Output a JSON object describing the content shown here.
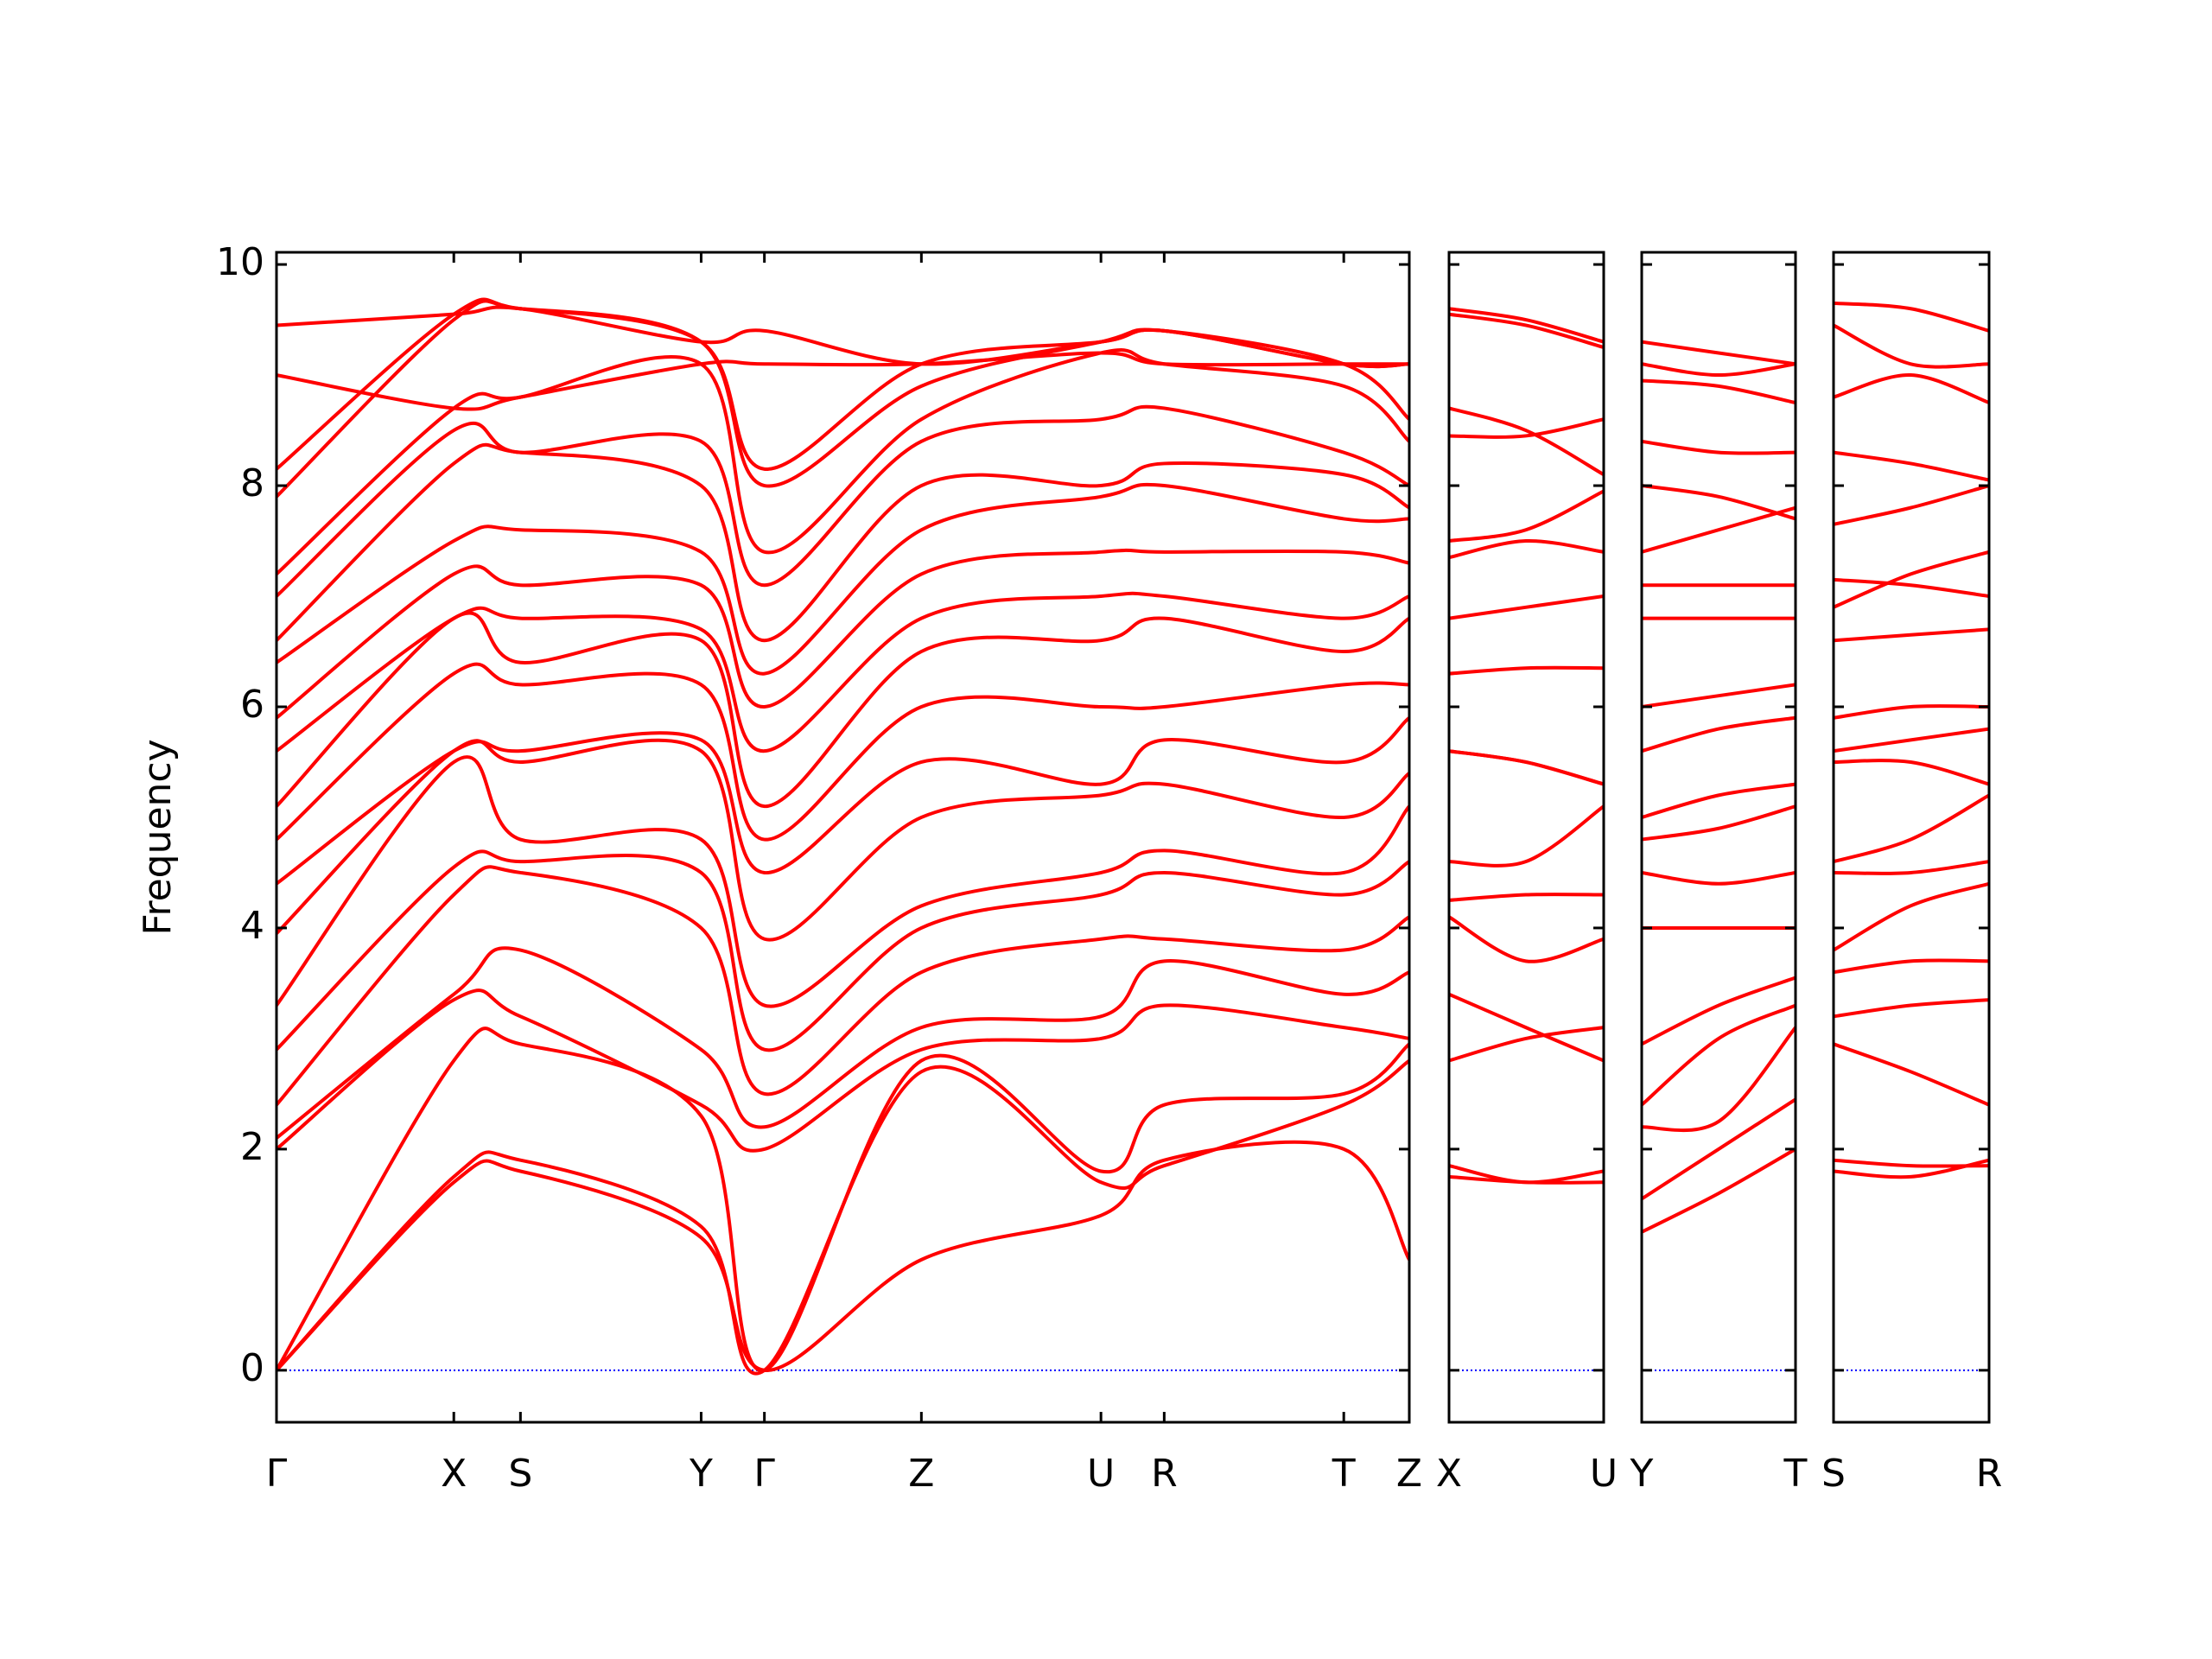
{
  "chart_data": [
    {
      "type": "line",
      "ylabel": "Frequency",
      "color": "#ff0000",
      "ytick_labels": true,
      "reference_line": {
        "value": 0,
        "color": "#0000ff"
      },
      "xlim": [
        0,
        1.003
      ],
      "ylim": [
        -0.47,
        10.11
      ],
      "yticks": [
        0,
        2,
        4,
        6,
        8,
        10
      ],
      "xticks": [
        {
          "value": 0,
          "label": "Γ"
        },
        {
          "value": 0.157,
          "label": "X"
        },
        {
          "value": 0.216,
          "label": "S"
        },
        {
          "value": 0.376,
          "label": "Y"
        },
        {
          "value": 0.432,
          "label": "Γ"
        },
        {
          "value": 0.571,
          "label": "Z"
        },
        {
          "value": 0.73,
          "label": "U"
        },
        {
          "value": 0.786,
          "label": "R"
        },
        {
          "value": 0.945,
          "label": "T"
        },
        {
          "value": 1.003,
          "label": "Z"
        }
      ],
      "x": [
        0,
        0.157,
        0.216,
        0.376,
        0.432,
        0.571,
        0.73,
        0.786,
        0.945,
        1.003
      ],
      "series": [
        {
          "values": [
            0,
            1.7,
            1.8,
            1.2,
            0,
            1.0,
            1.4,
            1.9,
            2.0,
            1.0
          ]
        },
        {
          "values": [
            0,
            1.75,
            1.9,
            1.3,
            0,
            2.7,
            1.7,
            1.85,
            2.4,
            2.8
          ]
        },
        {
          "values": [
            0,
            2.8,
            2.95,
            2.3,
            0,
            2.8,
            1.8,
            2.4,
            2.5,
            2.95
          ]
        },
        {
          "values": [
            2.0,
            3.35,
            3.2,
            2.4,
            2.0,
            2.9,
            3.0,
            3.3,
            3.1,
            3.0
          ]
        },
        {
          "values": [
            2.1,
            3.4,
            3.8,
            2.9,
            2.2,
            3.1,
            3.2,
            3.7,
            3.4,
            3.6
          ]
        },
        {
          "values": [
            2.4,
            4.3,
            4.5,
            4.0,
            2.5,
            3.6,
            3.9,
            3.9,
            3.8,
            4.1
          ]
        },
        {
          "values": [
            2.9,
            4.55,
            4.6,
            4.5,
            2.9,
            4.0,
            4.3,
            4.5,
            4.3,
            4.6
          ]
        },
        {
          "values": [
            3.3,
            5.5,
            4.8,
            4.8,
            3.3,
            4.2,
            4.5,
            4.7,
            4.5,
            5.1
          ]
        },
        {
          "values": [
            3.95,
            5.6,
            5.5,
            5.6,
            3.9,
            5.0,
            5.2,
            5.3,
            5.0,
            5.4
          ]
        },
        {
          "values": [
            4.4,
            5.6,
            5.6,
            5.7,
            4.5,
            5.5,
            5.3,
            5.7,
            5.5,
            5.9
          ]
        },
        {
          "values": [
            4.8,
            6.3,
            6.2,
            6.2,
            4.8,
            6.0,
            6.0,
            6.0,
            6.2,
            6.2
          ]
        },
        {
          "values": [
            5.1,
            6.8,
            6.4,
            6.6,
            5.1,
            6.5,
            6.6,
            6.8,
            6.5,
            6.8
          ]
        },
        {
          "values": [
            5.6,
            6.8,
            6.8,
            6.7,
            5.6,
            6.8,
            7.0,
            7.0,
            6.8,
            7.0
          ]
        },
        {
          "values": [
            5.9,
            7.2,
            7.1,
            7.1,
            6.0,
            7.2,
            7.4,
            7.4,
            7.4,
            7.3
          ]
        },
        {
          "values": [
            6.4,
            7.5,
            7.6,
            7.4,
            6.3,
            7.6,
            7.9,
            8.0,
            7.7,
            7.7
          ]
        },
        {
          "values": [
            6.6,
            8.2,
            8.3,
            8.0,
            6.6,
            8.0,
            8.0,
            8.2,
            8.1,
            7.8
          ]
        },
        {
          "values": [
            7.0,
            8.5,
            8.3,
            8.4,
            7.1,
            8.4,
            8.6,
            8.7,
            8.3,
            8.0
          ]
        },
        {
          "values": [
            7.2,
            8.7,
            8.8,
            9.1,
            7.4,
            8.6,
            9.2,
            9.1,
            8.9,
            8.4
          ]
        },
        {
          "values": [
            7.9,
            9.5,
            9.6,
            9.3,
            8.0,
            8.9,
            9.3,
            9.4,
            9.1,
            8.6
          ]
        },
        {
          "values": [
            8.15,
            9.55,
            9.6,
            9.3,
            8.15,
            9.1,
            9.3,
            9.4,
            9.1,
            9.1
          ]
        },
        {
          "values": [
            9.0,
            8.7,
            8.8,
            9.1,
            9.1,
            9.1,
            9.2,
            9.1,
            9.1,
            9.1
          ]
        },
        {
          "values": [
            9.45,
            9.55,
            9.6,
            9.3,
            9.4,
            9.1,
            9.3,
            9.4,
            9.1,
            9.1
          ]
        }
      ]
    },
    {
      "type": "line",
      "color": "#ff0000",
      "ytick_labels": false,
      "reference_line": {
        "value": 0,
        "color": "#0000ff"
      },
      "xlim": [
        0,
        0.137
      ],
      "ylim": [
        -0.47,
        10.11
      ],
      "yticks": [
        0,
        2,
        4,
        6,
        8,
        10
      ],
      "xticks": [
        {
          "value": 0,
          "label": "X"
        },
        {
          "value": 0.137,
          "label": "U"
        }
      ],
      "x": [
        0,
        0.068,
        0.137
      ],
      "series": [
        {
          "values": [
            1.85,
            1.7,
            1.8
          ]
        },
        {
          "values": [
            1.75,
            1.7,
            1.7
          ]
        },
        {
          "values": [
            2.8,
            3.0,
            3.1
          ]
        },
        {
          "values": [
            3.4,
            3.1,
            2.8
          ]
        },
        {
          "values": [
            4.1,
            3.7,
            3.9
          ]
        },
        {
          "values": [
            4.25,
            4.3,
            4.3
          ]
        },
        {
          "values": [
            4.6,
            4.6,
            5.1
          ]
        },
        {
          "values": [
            5.6,
            5.5,
            5.3
          ]
        },
        {
          "values": [
            5.6,
            5.5,
            5.3
          ]
        },
        {
          "values": [
            6.3,
            6.35,
            6.35
          ]
        },
        {
          "values": [
            6.8,
            6.9,
            7.0
          ]
        },
        {
          "values": [
            7.35,
            7.5,
            7.4
          ]
        },
        {
          "values": [
            7.5,
            7.6,
            7.95
          ]
        },
        {
          "values": [
            8.45,
            8.45,
            8.6
          ]
        },
        {
          "values": [
            8.7,
            8.5,
            8.1
          ]
        },
        {
          "values": [
            9.55,
            9.45,
            9.25
          ]
        },
        {
          "values": [
            9.6,
            9.5,
            9.3
          ]
        }
      ]
    },
    {
      "type": "line",
      "color": "#ff0000",
      "ytick_labels": false,
      "reference_line": {
        "value": 0,
        "color": "#0000ff"
      },
      "xlim": [
        0,
        0.136
      ],
      "ylim": [
        -0.47,
        10.11
      ],
      "yticks": [
        0,
        2,
        4,
        6,
        8,
        10
      ],
      "xticks": [
        {
          "value": 0,
          "label": "Y"
        },
        {
          "value": 0.136,
          "label": "T"
        }
      ],
      "x": [
        0,
        0.068,
        0.136
      ],
      "series": [
        {
          "values": [
            1.25,
            1.6,
            2.0
          ]
        },
        {
          "values": [
            1.55,
            2.0,
            2.45
          ]
        },
        {
          "values": [
            2.2,
            2.25,
            3.1
          ]
        },
        {
          "values": [
            2.4,
            3.0,
            3.3
          ]
        },
        {
          "values": [
            2.95,
            3.3,
            3.55
          ]
        },
        {
          "values": [
            4.0,
            4.0,
            4.0
          ]
        },
        {
          "values": [
            4.5,
            4.4,
            4.5
          ]
        },
        {
          "values": [
            4.8,
            4.9,
            5.1
          ]
        },
        {
          "values": [
            5.0,
            5.2,
            5.3
          ]
        },
        {
          "values": [
            5.6,
            5.8,
            5.9
          ]
        },
        {
          "values": [
            6.0,
            6.1,
            6.2
          ]
        },
        {
          "values": [
            6.8,
            6.8,
            6.8
          ]
        },
        {
          "values": [
            7.1,
            7.1,
            7.1
          ]
        },
        {
          "values": [
            7.4,
            7.6,
            7.8
          ]
        },
        {
          "values": [
            8.0,
            7.9,
            7.7
          ]
        },
        {
          "values": [
            8.4,
            8.3,
            8.3
          ]
        },
        {
          "values": [
            8.95,
            8.9,
            8.75
          ]
        },
        {
          "values": [
            9.1,
            9.0,
            9.1
          ]
        },
        {
          "values": [
            9.3,
            9.2,
            9.1
          ]
        }
      ]
    },
    {
      "type": "line",
      "color": "#ff0000",
      "ytick_labels": false,
      "reference_line": {
        "value": 0,
        "color": "#0000ff"
      },
      "xlim": [
        0,
        0.137
      ],
      "ylim": [
        -0.47,
        10.11
      ],
      "yticks": [
        0,
        2,
        4,
        6,
        8,
        10
      ],
      "xticks": [
        {
          "value": 0,
          "label": "S"
        },
        {
          "value": 0.137,
          "label": "R"
        }
      ],
      "x": [
        0,
        0.068,
        0.137
      ],
      "series": [
        {
          "values": [
            1.8,
            1.75,
            1.9
          ]
        },
        {
          "values": [
            1.9,
            1.85,
            1.85
          ]
        },
        {
          "values": [
            2.95,
            2.7,
            2.4
          ]
        },
        {
          "values": [
            3.2,
            3.3,
            3.35
          ]
        },
        {
          "values": [
            3.6,
            3.7,
            3.7
          ]
        },
        {
          "values": [
            3.8,
            4.2,
            4.4
          ]
        },
        {
          "values": [
            4.5,
            4.5,
            4.6
          ]
        },
        {
          "values": [
            4.6,
            4.8,
            5.2
          ]
        },
        {
          "values": [
            5.5,
            5.5,
            5.3
          ]
        },
        {
          "values": [
            5.6,
            5.7,
            5.8
          ]
        },
        {
          "values": [
            5.9,
            6.0,
            6.0
          ]
        },
        {
          "values": [
            6.6,
            6.65,
            6.7
          ]
        },
        {
          "values": [
            6.9,
            7.2,
            7.4
          ]
        },
        {
          "values": [
            7.15,
            7.1,
            7.0
          ]
        },
        {
          "values": [
            7.65,
            7.8,
            8.0
          ]
        },
        {
          "values": [
            8.3,
            8.2,
            8.05
          ]
        },
        {
          "values": [
            8.8,
            9.0,
            8.75
          ]
        },
        {
          "values": [
            9.45,
            9.1,
            9.1
          ]
        },
        {
          "values": [
            9.65,
            9.6,
            9.4
          ]
        }
      ]
    }
  ]
}
